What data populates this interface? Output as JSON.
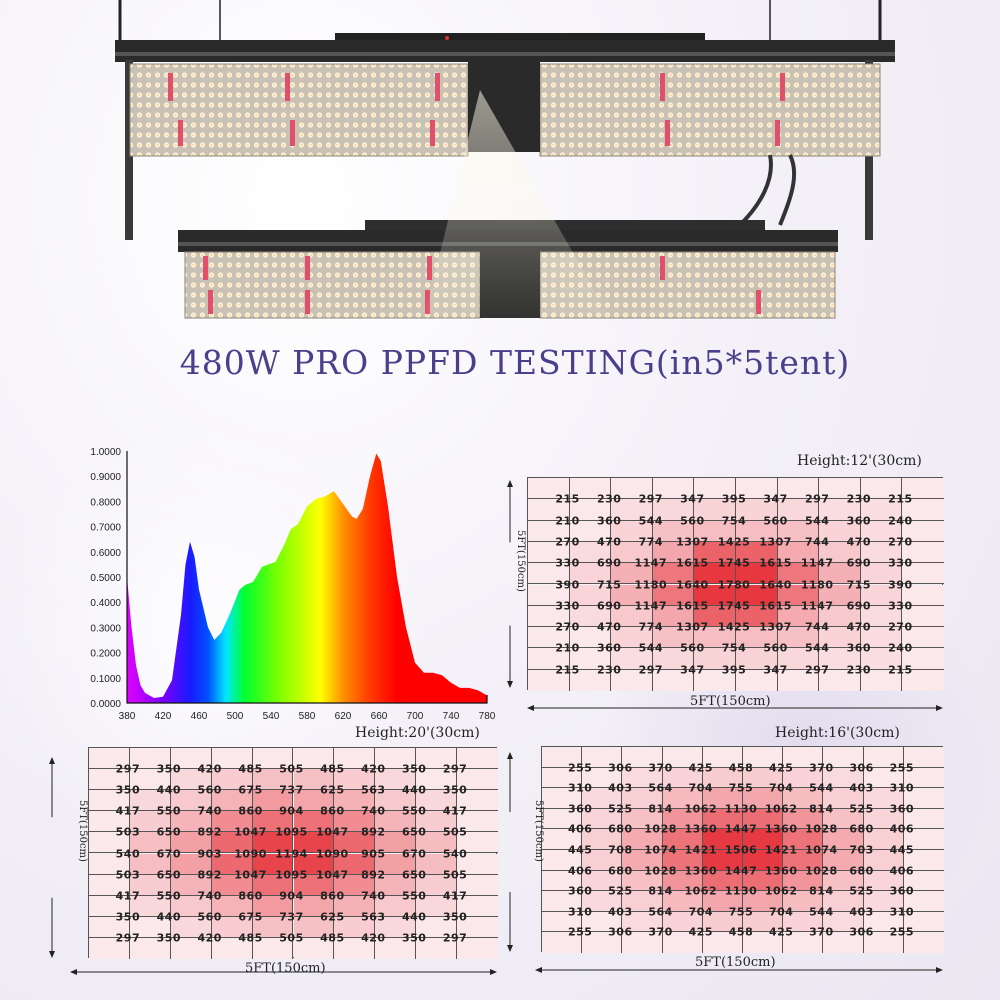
{
  "title": "480W  PRO PPFD TESTING(in5*5tent)",
  "colors": {
    "title": "#4b3f8c",
    "heat_low": "#fbe8eb",
    "heat_high": "#e41f28",
    "grid_line": "#555555"
  },
  "chart_data": [
    {
      "type": "area",
      "title": "",
      "xlabel": "",
      "ylabel": "",
      "xlim": [
        380,
        780
      ],
      "ylim": [
        0,
        1
      ],
      "x_ticks": [
        "380",
        "420",
        "460",
        "500",
        "540",
        "580",
        "620",
        "660",
        "700",
        "740",
        "780"
      ],
      "y_ticks": [
        "0.0000",
        "0.1000",
        "0.2000",
        "0.3000",
        "0.4000",
        "0.5000",
        "0.6000",
        "0.7000",
        "0.8000",
        "0.9000",
        "1.0000"
      ],
      "fill": "visible-spectrum-gradient",
      "x": [
        380,
        385,
        390,
        395,
        400,
        410,
        420,
        430,
        440,
        445,
        450,
        455,
        460,
        470,
        477,
        485,
        495,
        505,
        512,
        520,
        530,
        537,
        545,
        555,
        562,
        570,
        580,
        590,
        600,
        610,
        620,
        630,
        635,
        642,
        650,
        657,
        662,
        670,
        680,
        690,
        700,
        710,
        720,
        730,
        740,
        750,
        760,
        770,
        780
      ],
      "y": [
        0.5,
        0.3,
        0.15,
        0.07,
        0.04,
        0.02,
        0.025,
        0.09,
        0.35,
        0.55,
        0.64,
        0.58,
        0.45,
        0.3,
        0.25,
        0.28,
        0.36,
        0.45,
        0.47,
        0.48,
        0.54,
        0.55,
        0.56,
        0.63,
        0.69,
        0.71,
        0.78,
        0.81,
        0.82,
        0.84,
        0.79,
        0.74,
        0.73,
        0.77,
        0.9,
        0.99,
        0.96,
        0.78,
        0.5,
        0.3,
        0.16,
        0.12,
        0.12,
        0.11,
        0.08,
        0.06,
        0.06,
        0.05,
        0.03
      ]
    },
    {
      "type": "heatmap",
      "height_label": "Height:12'(30cm)",
      "xlabel": "5FT(150cm)",
      "ylabel": "5FT(150cm)",
      "values": [
        [
          215,
          230,
          297,
          347,
          395,
          347,
          297,
          230,
          215
        ],
        [
          210,
          360,
          544,
          560,
          754,
          560,
          544,
          360,
          240
        ],
        [
          270,
          470,
          774,
          1307,
          1425,
          1307,
          744,
          470,
          270
        ],
        [
          330,
          690,
          1147,
          1615,
          1745,
          1615,
          1147,
          690,
          330
        ],
        [
          390,
          715,
          1180,
          1640,
          1780,
          1640,
          1180,
          715,
          390
        ],
        [
          330,
          690,
          1147,
          1615,
          1745,
          1615,
          1147,
          690,
          330
        ],
        [
          270,
          470,
          774,
          1307,
          1425,
          1307,
          744,
          470,
          270
        ],
        [
          210,
          360,
          544,
          560,
          754,
          560,
          544,
          360,
          240
        ],
        [
          215,
          230,
          297,
          347,
          395,
          347,
          297,
          230,
          215
        ]
      ]
    },
    {
      "type": "heatmap",
      "height_label": "Height:20'(30cm)",
      "xlabel": "5FT(150cm)",
      "ylabel": "5FT(150cm)",
      "values": [
        [
          297,
          350,
          420,
          485,
          505,
          485,
          420,
          350,
          297
        ],
        [
          350,
          440,
          560,
          675,
          737,
          625,
          563,
          440,
          350
        ],
        [
          417,
          550,
          740,
          860,
          904,
          860,
          740,
          550,
          417
        ],
        [
          503,
          650,
          892,
          1047,
          1095,
          1047,
          892,
          650,
          505
        ],
        [
          540,
          670,
          903,
          1090,
          1194,
          1090,
          905,
          670,
          540
        ],
        [
          503,
          650,
          892,
          1047,
          1095,
          1047,
          892,
          650,
          505
        ],
        [
          417,
          550,
          740,
          860,
          904,
          860,
          740,
          550,
          417
        ],
        [
          350,
          440,
          560,
          675,
          737,
          625,
          563,
          440,
          350
        ],
        [
          297,
          350,
          420,
          485,
          505,
          485,
          420,
          350,
          297
        ]
      ]
    },
    {
      "type": "heatmap",
      "height_label": "Height:16'(30cm)",
      "xlabel": "5FT(150cm)",
      "ylabel": "5FT(150cm)",
      "values": [
        [
          255,
          306,
          370,
          425,
          458,
          425,
          370,
          306,
          255
        ],
        [
          310,
          403,
          564,
          704,
          755,
          704,
          544,
          403,
          310
        ],
        [
          360,
          525,
          814,
          1062,
          1130,
          1062,
          814,
          525,
          360
        ],
        [
          406,
          680,
          1028,
          1360,
          1447,
          1360,
          1028,
          680,
          406
        ],
        [
          445,
          708,
          1074,
          1421,
          1506,
          1421,
          1074,
          703,
          445
        ],
        [
          406,
          680,
          1028,
          1360,
          1447,
          1360,
          1028,
          680,
          406
        ],
        [
          360,
          525,
          814,
          1062,
          1130,
          1062,
          814,
          525,
          360
        ],
        [
          310,
          403,
          564,
          704,
          755,
          704,
          544,
          403,
          310
        ],
        [
          255,
          306,
          370,
          425,
          458,
          425,
          370,
          306,
          255
        ]
      ]
    }
  ]
}
